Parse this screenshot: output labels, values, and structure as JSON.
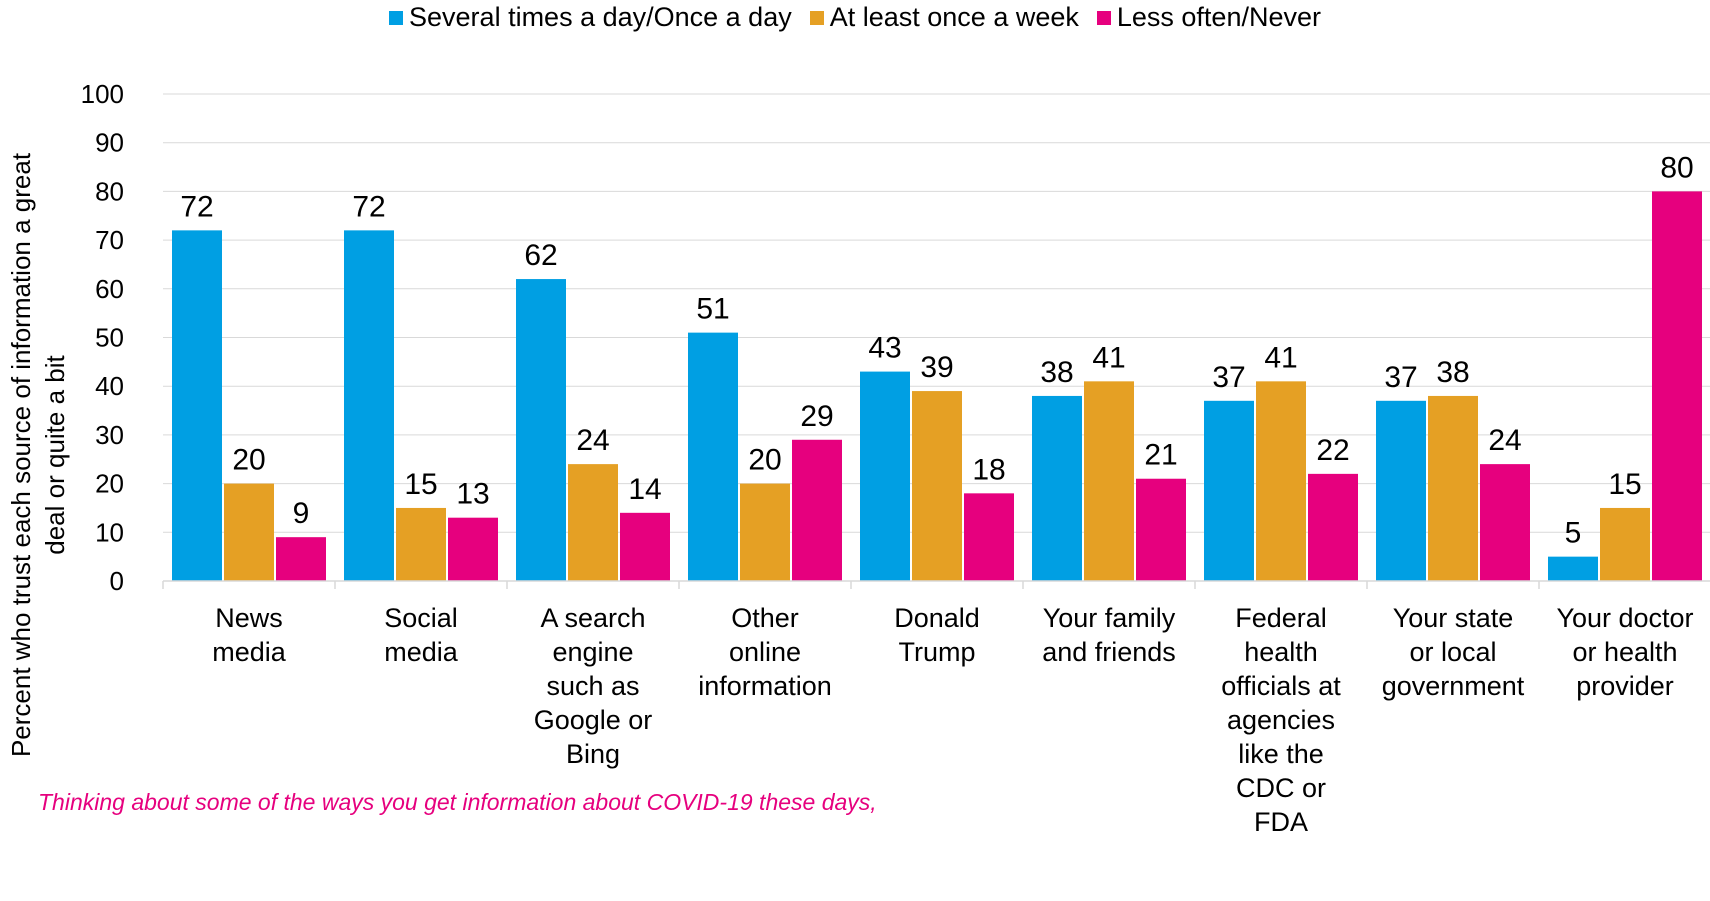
{
  "chart_data": {
    "type": "bar",
    "title": "",
    "xlabel": "",
    "ylabel": "Percent who trust each source of information a great deal or quite a bit",
    "ylabel_lines": [
      "Percent who trust each source of information a great",
      "deal or quite a bit"
    ],
    "ylim": [
      0,
      100
    ],
    "yticks": [
      0,
      10,
      20,
      30,
      40,
      50,
      60,
      70,
      80,
      90,
      100
    ],
    "grid": true,
    "legend_position": "top",
    "categories": [
      "News media",
      "Social media",
      "A search engine such as Google or Bing",
      "Other online information",
      "Donald Trump",
      "Your family and friends",
      "Federal health officials at agencies like the CDC or FDA",
      "Your state or local government",
      "Your doctor or health provider"
    ],
    "category_lines": [
      [
        "News",
        "media"
      ],
      [
        "Social",
        "media"
      ],
      [
        "A search",
        "engine",
        "such as",
        "Google or",
        "Bing"
      ],
      [
        "Other",
        "online",
        "information"
      ],
      [
        "Donald",
        "Trump"
      ],
      [
        "Your family",
        "and friends"
      ],
      [
        "Federal",
        "health",
        "officials at",
        "agencies",
        "like the",
        "CDC or",
        "FDA"
      ],
      [
        "Your state",
        "or local",
        "government"
      ],
      [
        "Your doctor",
        "or health",
        "provider"
      ]
    ],
    "series": [
      {
        "name": "Several times a day/Once a day",
        "color": "#009fe3",
        "values": [
          72,
          72,
          62,
          51,
          43,
          38,
          37,
          37,
          5
        ]
      },
      {
        "name": "At least once a week",
        "color": "#e5a024",
        "values": [
          20,
          15,
          24,
          20,
          39,
          41,
          41,
          38,
          15
        ]
      },
      {
        "name": "Less often/Never",
        "color": "#e6007e",
        "values": [
          9,
          13,
          14,
          29,
          18,
          21,
          22,
          24,
          80
        ]
      }
    ]
  },
  "footnote": "Thinking about some of the ways you get information about COVID-19 these days,"
}
